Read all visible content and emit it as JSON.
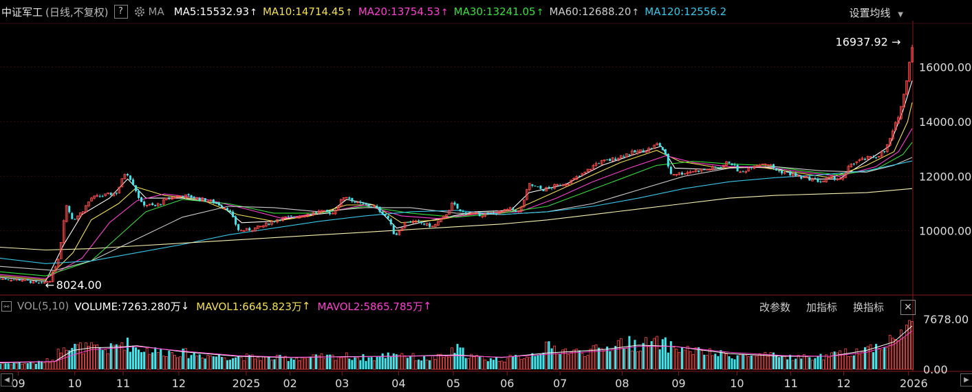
{
  "header": {
    "title": "中证军工",
    "mode": "(日线,不复权)",
    "help": "?",
    "ma_label": "MA",
    "ma_items": [
      {
        "label": "MA5:15532.93",
        "arrow": "↑",
        "color": "#ffffff"
      },
      {
        "label": "MA10:14714.45",
        "arrow": "↑",
        "color": "#f4e04d"
      },
      {
        "label": "MA20:13754.53",
        "arrow": "↑",
        "color": "#ff3fd1"
      },
      {
        "label": "MA30:13241.05",
        "arrow": "↑",
        "color": "#37e03a"
      },
      {
        "label": "MA60:12688.20",
        "arrow": "↑",
        "color": "#cccccc"
      },
      {
        "label": "MA120:12556.2",
        "arrow": "",
        "color": "#35c8ea"
      }
    ],
    "set_ma": "设置均线"
  },
  "volume_header": {
    "indicator": "VOL(5,10)",
    "volume": "VOLUME:7263.280万",
    "volume_arrow": "↓",
    "mavol1": "MAVOL1:6645.823万",
    "mavol1_arrow": "↑",
    "mavol2": "MAVOL2:5865.785万",
    "mavol2_arrow": "↑",
    "buttons": [
      "改参数",
      "加指标",
      "换指标"
    ],
    "close": "✕"
  },
  "colors": {
    "up": "#ff4b4b",
    "down": "#3fe8ee",
    "ma5": "#ffffff",
    "ma10": "#f4e04d",
    "ma20": "#ff3fd1",
    "ma30": "#37e03a",
    "ma60": "#cccccc",
    "ma120": "#35c8ea",
    "ma250": "#f8f3b0"
  },
  "chart_data": {
    "type": "candlestick",
    "price_ticks": [
      "16000.00",
      "14000.00",
      "12000.00",
      "10000.00"
    ],
    "price_tick_values": [
      16000,
      14000,
      12000,
      10000
    ],
    "ylim": [
      7700,
      17700
    ],
    "annotations": [
      {
        "label": "16937.92",
        "arrow": "←",
        "value": 16937.92,
        "date_index": 0.995
      },
      {
        "label": "8024.00",
        "arrow": "←",
        "value": 8024.0,
        "date_index": 0.045
      }
    ],
    "x_ticks": [
      "09",
      "10",
      "11",
      "12",
      "2025",
      "02",
      "03",
      "04",
      "05",
      "06",
      "07",
      "08",
      "09",
      "10",
      "11",
      "12",
      "2026"
    ],
    "x_tick_pos": [
      0.02,
      0.082,
      0.135,
      0.196,
      0.27,
      0.318,
      0.375,
      0.437,
      0.497,
      0.556,
      0.614,
      0.682,
      0.744,
      0.808,
      0.867,
      0.925,
      0.996
    ],
    "price_path": [
      [
        0.0,
        8250
      ],
      [
        0.025,
        8200
      ],
      [
        0.045,
        8050
      ],
      [
        0.055,
        8200
      ],
      [
        0.065,
        9100
      ],
      [
        0.072,
        11000
      ],
      [
        0.08,
        10400
      ],
      [
        0.09,
        10700
      ],
      [
        0.1,
        11200
      ],
      [
        0.115,
        11300
      ],
      [
        0.128,
        11400
      ],
      [
        0.138,
        12200
      ],
      [
        0.145,
        11800
      ],
      [
        0.155,
        11000
      ],
      [
        0.17,
        10900
      ],
      [
        0.185,
        11200
      ],
      [
        0.2,
        11300
      ],
      [
        0.215,
        11200
      ],
      [
        0.235,
        11050
      ],
      [
        0.25,
        10800
      ],
      [
        0.262,
        10000
      ],
      [
        0.275,
        10050
      ],
      [
        0.29,
        10200
      ],
      [
        0.305,
        10450
      ],
      [
        0.32,
        10500
      ],
      [
        0.335,
        10600
      ],
      [
        0.35,
        10700
      ],
      [
        0.365,
        10650
      ],
      [
        0.378,
        11300
      ],
      [
        0.392,
        11000
      ],
      [
        0.41,
        10900
      ],
      [
        0.425,
        10500
      ],
      [
        0.433,
        9800
      ],
      [
        0.445,
        10350
      ],
      [
        0.46,
        10300
      ],
      [
        0.475,
        10150
      ],
      [
        0.488,
        10550
      ],
      [
        0.496,
        11000
      ],
      [
        0.505,
        10700
      ],
      [
        0.52,
        10600
      ],
      [
        0.535,
        10600
      ],
      [
        0.55,
        10700
      ],
      [
        0.56,
        10800
      ],
      [
        0.57,
        10700
      ],
      [
        0.58,
        11700
      ],
      [
        0.595,
        11500
      ],
      [
        0.61,
        11650
      ],
      [
        0.625,
        11800
      ],
      [
        0.64,
        12100
      ],
      [
        0.655,
        12500
      ],
      [
        0.67,
        12600
      ],
      [
        0.685,
        12800
      ],
      [
        0.7,
        12900
      ],
      [
        0.712,
        13000
      ],
      [
        0.722,
        13200
      ],
      [
        0.728,
        12900
      ],
      [
        0.735,
        12100
      ],
      [
        0.745,
        12100
      ],
      [
        0.76,
        12200
      ],
      [
        0.775,
        12250
      ],
      [
        0.79,
        12350
      ],
      [
        0.8,
        12550
      ],
      [
        0.812,
        12100
      ],
      [
        0.825,
        12400
      ],
      [
        0.84,
        12500
      ],
      [
        0.852,
        12200
      ],
      [
        0.865,
        12100
      ],
      [
        0.878,
        11950
      ],
      [
        0.89,
        11900
      ],
      [
        0.9,
        11800
      ],
      [
        0.912,
        11950
      ],
      [
        0.925,
        11900
      ],
      [
        0.932,
        12450
      ],
      [
        0.945,
        12600
      ],
      [
        0.958,
        12700
      ],
      [
        0.97,
        12900
      ],
      [
        0.98,
        13700
      ],
      [
        0.99,
        14800
      ],
      [
        0.996,
        16000
      ],
      [
        1.0,
        16800
      ]
    ],
    "ma_paths": {
      "ma5": [
        [
          0,
          8300
        ],
        [
          0.05,
          8150
        ],
        [
          0.07,
          9500
        ],
        [
          0.09,
          10600
        ],
        [
          0.12,
          11200
        ],
        [
          0.14,
          11900
        ],
        [
          0.16,
          11200
        ],
        [
          0.2,
          11200
        ],
        [
          0.24,
          11000
        ],
        [
          0.265,
          10300
        ],
        [
          0.3,
          10350
        ],
        [
          0.33,
          10550
        ],
        [
          0.36,
          10650
        ],
        [
          0.38,
          11150
        ],
        [
          0.41,
          10950
        ],
        [
          0.435,
          10100
        ],
        [
          0.46,
          10300
        ],
        [
          0.49,
          10500
        ],
        [
          0.52,
          10700
        ],
        [
          0.56,
          10750
        ],
        [
          0.58,
          11400
        ],
        [
          0.62,
          11700
        ],
        [
          0.66,
          12400
        ],
        [
          0.7,
          12850
        ],
        [
          0.725,
          13100
        ],
        [
          0.74,
          12300
        ],
        [
          0.78,
          12250
        ],
        [
          0.81,
          12350
        ],
        [
          0.85,
          12300
        ],
        [
          0.89,
          11900
        ],
        [
          0.92,
          11900
        ],
        [
          0.95,
          12550
        ],
        [
          0.975,
          13100
        ],
        [
          0.99,
          14400
        ],
        [
          1,
          15500
        ]
      ],
      "ma10": [
        [
          0,
          8350
        ],
        [
          0.05,
          8200
        ],
        [
          0.08,
          9200
        ],
        [
          0.1,
          10400
        ],
        [
          0.13,
          11000
        ],
        [
          0.15,
          11600
        ],
        [
          0.18,
          11300
        ],
        [
          0.22,
          11150
        ],
        [
          0.26,
          10600
        ],
        [
          0.3,
          10350
        ],
        [
          0.34,
          10550
        ],
        [
          0.38,
          10950
        ],
        [
          0.41,
          10950
        ],
        [
          0.44,
          10300
        ],
        [
          0.48,
          10400
        ],
        [
          0.52,
          10650
        ],
        [
          0.56,
          10700
        ],
        [
          0.6,
          11300
        ],
        [
          0.64,
          11900
        ],
        [
          0.68,
          12500
        ],
        [
          0.72,
          12950
        ],
        [
          0.745,
          12550
        ],
        [
          0.79,
          12300
        ],
        [
          0.83,
          12350
        ],
        [
          0.87,
          12150
        ],
        [
          0.91,
          11950
        ],
        [
          0.95,
          12400
        ],
        [
          0.98,
          12900
        ],
        [
          0.995,
          14000
        ],
        [
          1,
          14700
        ]
      ],
      "ma20": [
        [
          0,
          8400
        ],
        [
          0.05,
          8250
        ],
        [
          0.09,
          9000
        ],
        [
          0.12,
          10300
        ],
        [
          0.15,
          11100
        ],
        [
          0.18,
          11350
        ],
        [
          0.22,
          11200
        ],
        [
          0.27,
          10800
        ],
        [
          0.31,
          10450
        ],
        [
          0.36,
          10700
        ],
        [
          0.4,
          10950
        ],
        [
          0.44,
          10550
        ],
        [
          0.48,
          10450
        ],
        [
          0.53,
          10650
        ],
        [
          0.57,
          10700
        ],
        [
          0.61,
          11200
        ],
        [
          0.65,
          11800
        ],
        [
          0.69,
          12300
        ],
        [
          0.73,
          12750
        ],
        [
          0.76,
          12500
        ],
        [
          0.8,
          12350
        ],
        [
          0.84,
          12350
        ],
        [
          0.88,
          12150
        ],
        [
          0.92,
          12000
        ],
        [
          0.96,
          12350
        ],
        [
          0.985,
          12900
        ],
        [
          1,
          13750
        ]
      ],
      "ma30": [
        [
          0,
          8500
        ],
        [
          0.05,
          8350
        ],
        [
          0.1,
          8900
        ],
        [
          0.13,
          9800
        ],
        [
          0.16,
          10700
        ],
        [
          0.2,
          11150
        ],
        [
          0.25,
          11000
        ],
        [
          0.3,
          10650
        ],
        [
          0.35,
          10650
        ],
        [
          0.4,
          10900
        ],
        [
          0.45,
          10650
        ],
        [
          0.5,
          10500
        ],
        [
          0.55,
          10650
        ],
        [
          0.6,
          10900
        ],
        [
          0.64,
          11400
        ],
        [
          0.68,
          11900
        ],
        [
          0.72,
          12400
        ],
        [
          0.76,
          12550
        ],
        [
          0.8,
          12450
        ],
        [
          0.84,
          12400
        ],
        [
          0.88,
          12200
        ],
        [
          0.92,
          12050
        ],
        [
          0.96,
          12250
        ],
        [
          0.99,
          12800
        ],
        [
          1,
          13240
        ]
      ],
      "ma60": [
        [
          0,
          8700
        ],
        [
          0.06,
          8550
        ],
        [
          0.1,
          8900
        ],
        [
          0.15,
          9700
        ],
        [
          0.2,
          10500
        ],
        [
          0.25,
          10900
        ],
        [
          0.3,
          10850
        ],
        [
          0.35,
          10700
        ],
        [
          0.4,
          10850
        ],
        [
          0.45,
          10850
        ],
        [
          0.5,
          10650
        ],
        [
          0.55,
          10600
        ],
        [
          0.6,
          10700
        ],
        [
          0.65,
          11000
        ],
        [
          0.7,
          11500
        ],
        [
          0.75,
          12000
        ],
        [
          0.8,
          12300
        ],
        [
          0.85,
          12350
        ],
        [
          0.9,
          12200
        ],
        [
          0.95,
          12150
        ],
        [
          0.98,
          12400
        ],
        [
          1,
          12690
        ]
      ],
      "ma120": [
        [
          0,
          9000
        ],
        [
          0.05,
          8800
        ],
        [
          0.1,
          8900
        ],
        [
          0.15,
          9200
        ],
        [
          0.2,
          9500
        ],
        [
          0.25,
          9850
        ],
        [
          0.3,
          10100
        ],
        [
          0.35,
          10350
        ],
        [
          0.4,
          10550
        ],
        [
          0.45,
          10700
        ],
        [
          0.5,
          10750
        ],
        [
          0.55,
          10600
        ],
        [
          0.6,
          10700
        ],
        [
          0.65,
          10900
        ],
        [
          0.7,
          11200
        ],
        [
          0.75,
          11550
        ],
        [
          0.8,
          11800
        ],
        [
          0.85,
          11950
        ],
        [
          0.9,
          12050
        ],
        [
          0.95,
          12200
        ],
        [
          1,
          12560
        ]
      ],
      "ma250": [
        [
          0,
          9400
        ],
        [
          0.05,
          9300
        ],
        [
          0.1,
          9350
        ],
        [
          0.15,
          9450
        ],
        [
          0.2,
          9550
        ],
        [
          0.25,
          9650
        ],
        [
          0.3,
          9750
        ],
        [
          0.35,
          9850
        ],
        [
          0.4,
          9950
        ],
        [
          0.45,
          10050
        ],
        [
          0.5,
          10150
        ],
        [
          0.55,
          10250
        ],
        [
          0.6,
          10400
        ],
        [
          0.65,
          10600
        ],
        [
          0.7,
          10800
        ],
        [
          0.75,
          11000
        ],
        [
          0.8,
          11200
        ],
        [
          0.85,
          11300
        ],
        [
          0.9,
          11350
        ],
        [
          0.95,
          11400
        ],
        [
          1,
          11550
        ]
      ]
    },
    "volume_ticks": [
      "7678.00",
      "0.00"
    ],
    "volume_ylim": [
      0,
      7900
    ],
    "volume_path": [
      [
        0,
        900
      ],
      [
        0.04,
        1000
      ],
      [
        0.06,
        1500
      ],
      [
        0.07,
        4200
      ],
      [
        0.08,
        3400
      ],
      [
        0.1,
        3200
      ],
      [
        0.12,
        3000
      ],
      [
        0.135,
        4200
      ],
      [
        0.15,
        3300
      ],
      [
        0.17,
        2800
      ],
      [
        0.2,
        2500
      ],
      [
        0.23,
        2100
      ],
      [
        0.26,
        1900
      ],
      [
        0.3,
        1700
      ],
      [
        0.34,
        1800
      ],
      [
        0.38,
        2000
      ],
      [
        0.41,
        1700
      ],
      [
        0.435,
        2600
      ],
      [
        0.46,
        1600
      ],
      [
        0.49,
        1900
      ],
      [
        0.5,
        3200
      ],
      [
        0.52,
        1800
      ],
      [
        0.55,
        1500
      ],
      [
        0.58,
        2100
      ],
      [
        0.6,
        3400
      ],
      [
        0.63,
        2600
      ],
      [
        0.66,
        3000
      ],
      [
        0.68,
        4200
      ],
      [
        0.7,
        3800
      ],
      [
        0.725,
        4000
      ],
      [
        0.74,
        3300
      ],
      [
        0.78,
        2400
      ],
      [
        0.81,
        2100
      ],
      [
        0.85,
        2000
      ],
      [
        0.88,
        1800
      ],
      [
        0.91,
        2000
      ],
      [
        0.93,
        2600
      ],
      [
        0.95,
        3200
      ],
      [
        0.97,
        3900
      ],
      [
        0.985,
        4900
      ],
      [
        0.995,
        6500
      ],
      [
        1,
        7263
      ]
    ],
    "mavol1_path": [
      [
        0,
        1000
      ],
      [
        0.06,
        1200
      ],
      [
        0.08,
        2900
      ],
      [
        0.1,
        3300
      ],
      [
        0.13,
        3400
      ],
      [
        0.15,
        3600
      ],
      [
        0.2,
        2700
      ],
      [
        0.26,
        2000
      ],
      [
        0.32,
        1800
      ],
      [
        0.38,
        1950
      ],
      [
        0.44,
        2000
      ],
      [
        0.5,
        2200
      ],
      [
        0.55,
        1800
      ],
      [
        0.6,
        2500
      ],
      [
        0.66,
        3000
      ],
      [
        0.7,
        3700
      ],
      [
        0.74,
        3500
      ],
      [
        0.8,
        2400
      ],
      [
        0.86,
        2000
      ],
      [
        0.91,
        2000
      ],
      [
        0.95,
        2900
      ],
      [
        0.98,
        4200
      ],
      [
        1,
        6646
      ]
    ],
    "mavol2_path": [
      [
        0,
        1100
      ],
      [
        0.06,
        1200
      ],
      [
        0.08,
        2200
      ],
      [
        0.1,
        3000
      ],
      [
        0.13,
        3300
      ],
      [
        0.15,
        3500
      ],
      [
        0.2,
        2800
      ],
      [
        0.26,
        2100
      ],
      [
        0.32,
        1850
      ],
      [
        0.38,
        1900
      ],
      [
        0.44,
        2000
      ],
      [
        0.5,
        2100
      ],
      [
        0.55,
        1850
      ],
      [
        0.6,
        2300
      ],
      [
        0.66,
        2800
      ],
      [
        0.7,
        3500
      ],
      [
        0.74,
        3500
      ],
      [
        0.8,
        2600
      ],
      [
        0.86,
        2100
      ],
      [
        0.91,
        2000
      ],
      [
        0.95,
        2600
      ],
      [
        0.98,
        3800
      ],
      [
        1,
        5866
      ]
    ]
  }
}
